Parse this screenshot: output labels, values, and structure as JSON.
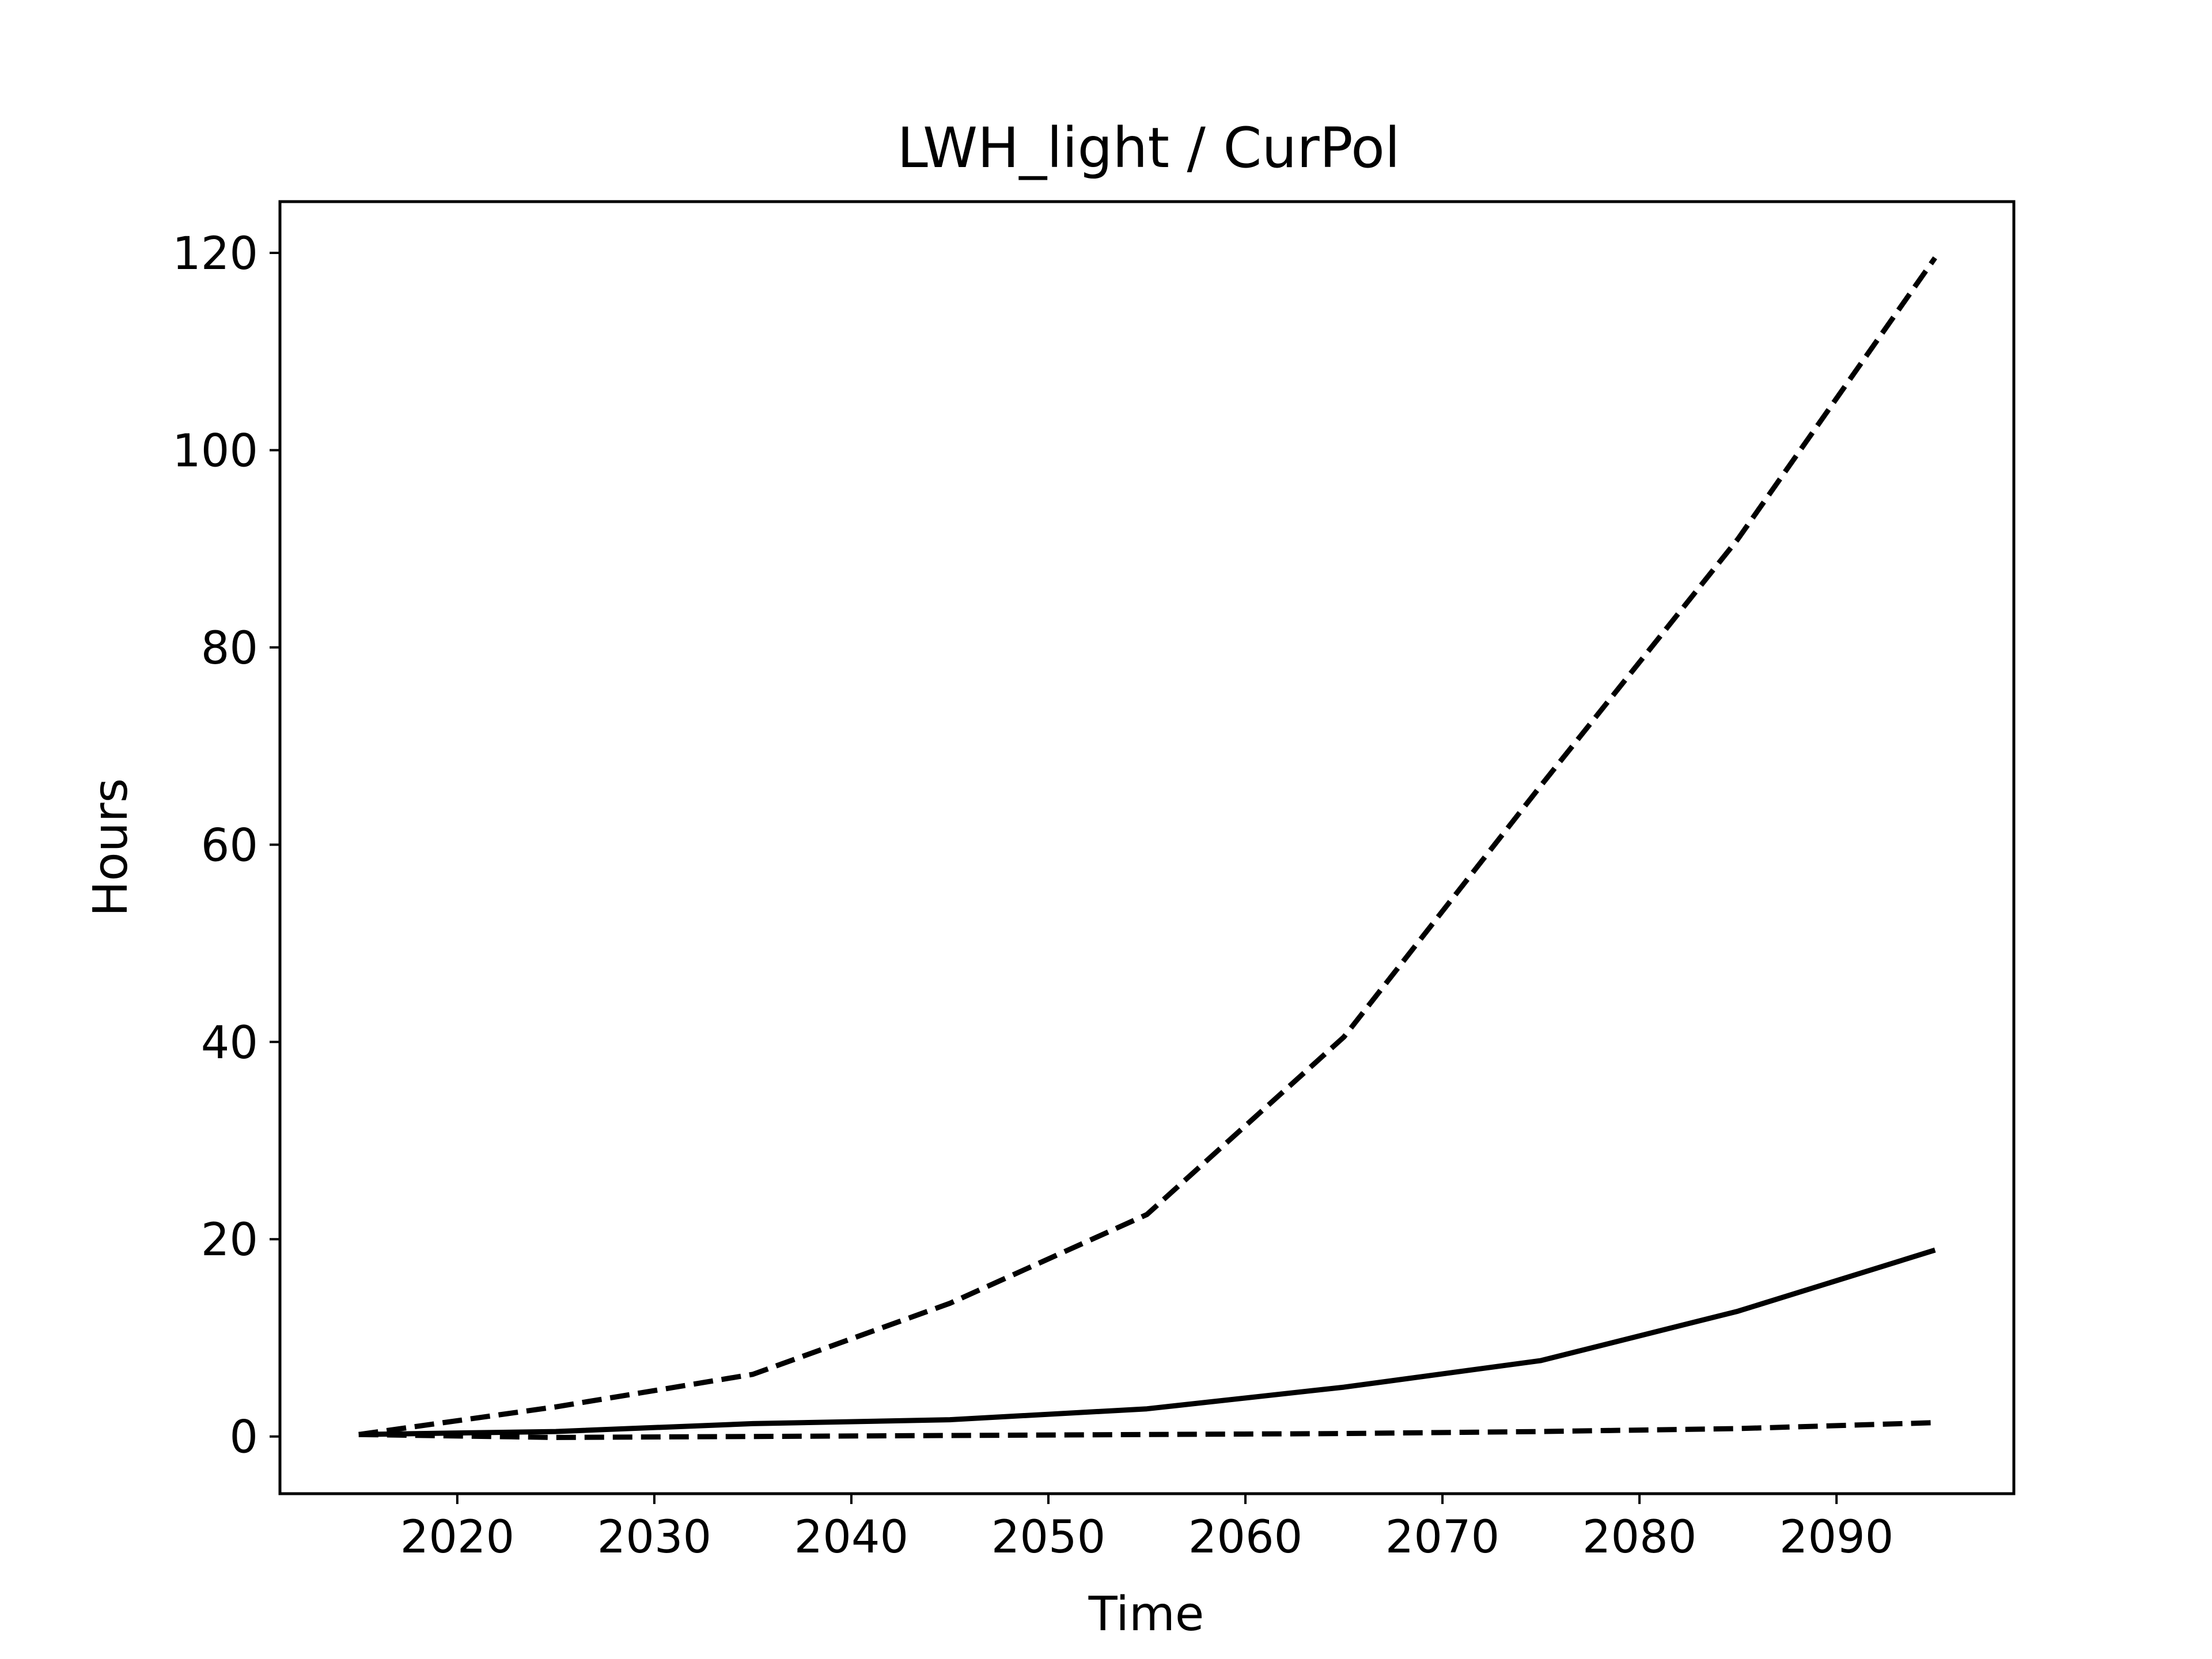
{
  "chart_data": {
    "type": "line",
    "title": "LWH_light / CurPol",
    "xlabel": "Time",
    "ylabel": "Hours",
    "xlim": [
      2011,
      2099
    ],
    "ylim": [
      -5.8,
      125.2
    ],
    "xticks": [
      2020,
      2030,
      2040,
      2050,
      2060,
      2070,
      2080,
      2090
    ],
    "yticks": [
      0,
      20,
      40,
      60,
      80,
      100,
      120
    ],
    "grid": false,
    "legend": "none",
    "x": [
      2015,
      2025,
      2035,
      2045,
      2055,
      2065,
      2075,
      2085,
      2095
    ],
    "series": [
      {
        "style": "dashed",
        "color": "#000000",
        "values": [
          0.2,
          3.0,
          6.3,
          13.5,
          22.5,
          40.5,
          66.0,
          91.0,
          119.5
        ]
      },
      {
        "style": "solid",
        "color": "#000000",
        "values": [
          0.2,
          0.5,
          1.3,
          1.7,
          2.8,
          5.0,
          7.7,
          12.7,
          18.9
        ]
      },
      {
        "style": "dashed",
        "color": "#000000",
        "values": [
          0.2,
          -0.1,
          0.0,
          0.1,
          0.2,
          0.3,
          0.5,
          0.8,
          1.4
        ]
      }
    ]
  }
}
